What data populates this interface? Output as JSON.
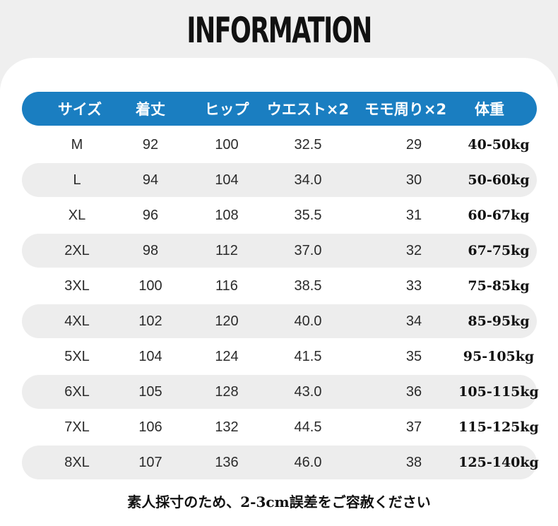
{
  "title": "INFORMATION",
  "table": {
    "headers": [
      "サイズ",
      "着丈",
      "ヒップ",
      "ウエスト×2",
      "モモ周り×2",
      "体重"
    ],
    "rows": [
      [
        "M",
        "92",
        "100",
        "32.5",
        "29",
        "40-50kg"
      ],
      [
        "L",
        "94",
        "104",
        "34.0",
        "30",
        "50-60kg"
      ],
      [
        "XL",
        "96",
        "108",
        "35.5",
        "31",
        "60-67kg"
      ],
      [
        "2XL",
        "98",
        "112",
        "37.0",
        "32",
        "67-75kg"
      ],
      [
        "3XL",
        "100",
        "116",
        "38.5",
        "33",
        "75-85kg"
      ],
      [
        "4XL",
        "102",
        "120",
        "40.0",
        "34",
        "85-95kg"
      ],
      [
        "5XL",
        "104",
        "124",
        "41.5",
        "35",
        "95-105kg"
      ],
      [
        "6XL",
        "105",
        "128",
        "43.0",
        "36",
        "105-115kg"
      ],
      [
        "7XL",
        "106",
        "132",
        "44.5",
        "37",
        "115-125kg"
      ],
      [
        "8XL",
        "107",
        "136",
        "46.0",
        "38",
        "125-140kg"
      ]
    ]
  },
  "note": "素人採寸のため、2-3cm誤差をご容赦ください",
  "colors": {
    "header_bg": "#1a7ec1",
    "row_shade": "#ededed",
    "page_bg": "#efefef",
    "card_bg": "#ffffff"
  }
}
